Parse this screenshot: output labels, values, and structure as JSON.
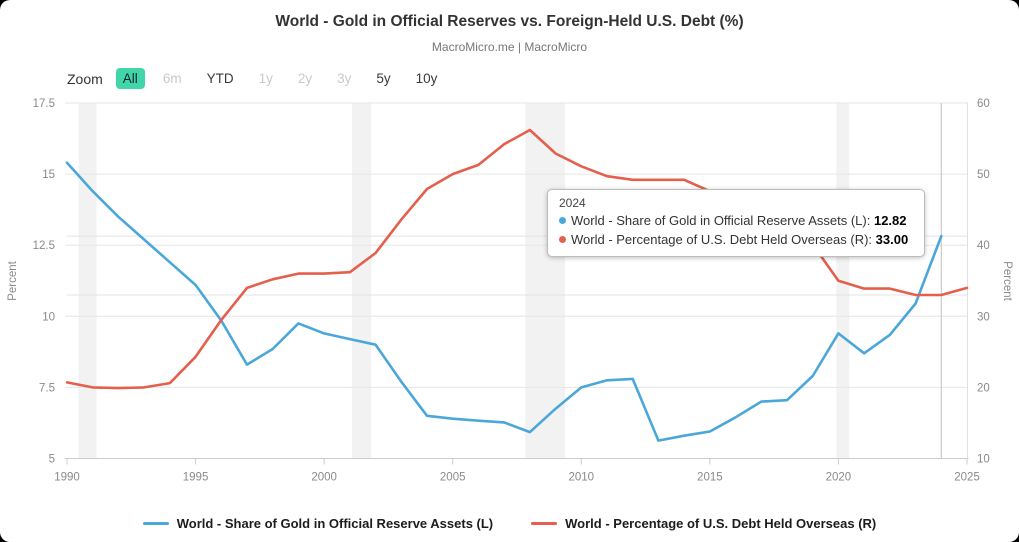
{
  "header": {
    "title": "World - Gold in Official Reserves vs. Foreign-Held U.S. Debt (%)",
    "subtitle": "MacroMicro.me | MacroMicro"
  },
  "toolbar": {
    "zoom_label": "Zoom",
    "buttons": [
      {
        "label": "All",
        "state": "active"
      },
      {
        "label": "6m",
        "state": "disabled"
      },
      {
        "label": "YTD",
        "state": "normal"
      },
      {
        "label": "1y",
        "state": "disabled"
      },
      {
        "label": "2y",
        "state": "disabled"
      },
      {
        "label": "3y",
        "state": "disabled"
      },
      {
        "label": "5y",
        "state": "normal"
      },
      {
        "label": "10y",
        "state": "normal"
      }
    ],
    "active_button_bg": "#41D6A9"
  },
  "tooltip": {
    "year": "2024",
    "rows": [
      {
        "name": "World - Share of Gold in Official Reserve Assets (L)",
        "value": "12.82",
        "color": "#4BA7D9"
      },
      {
        "name": "World - Percentage of U.S. Debt Held Overseas (R)",
        "value": "33.00",
        "color": "#E4604C"
      }
    ]
  },
  "legend": [
    {
      "label": "World - Share of Gold in Official Reserve Assets (L)",
      "color": "#4BA7D9"
    },
    {
      "label": "World - Percentage of U.S. Debt Held Overseas (R)",
      "color": "#E4604C"
    }
  ],
  "chart_data": {
    "type": "line",
    "title": "World - Gold in Official Reserves vs. Foreign-Held U.S. Debt (%)",
    "x_axis": {
      "min": 1990,
      "max": 2025,
      "ticks": [
        1990,
        1995,
        2000,
        2005,
        2010,
        2015,
        2020,
        2025
      ]
    },
    "left_axis": {
      "label": "Percent",
      "min": 5,
      "max": 17.5,
      "ticks": [
        5,
        7.5,
        10,
        12.5,
        15,
        17.5
      ]
    },
    "right_axis": {
      "label": "Percent",
      "min": 10,
      "max": 60,
      "ticks": [
        10,
        20,
        30,
        40,
        50,
        60
      ]
    },
    "grid": true,
    "legend_position": "bottom",
    "series": [
      {
        "name": "World - Share of Gold in Official Reserve Assets (L)",
        "axis": "left",
        "color": "#4BA7D9",
        "years": [
          1990,
          1991,
          1992,
          1993,
          1994,
          1995,
          1996,
          1997,
          1998,
          1999,
          2000,
          2001,
          2002,
          2003,
          2004,
          2005,
          2006,
          2007,
          2008,
          2009,
          2010,
          2011,
          2012,
          2013,
          2014,
          2015,
          2016,
          2017,
          2018,
          2019,
          2020,
          2021,
          2022,
          2023,
          2024
        ],
        "values": [
          15.4,
          14.4,
          13.5,
          12.7,
          11.9,
          11.1,
          9.85,
          8.3,
          8.85,
          9.75,
          9.4,
          9.2,
          9.0,
          7.7,
          6.5,
          6.4,
          6.33,
          6.27,
          5.93,
          6.75,
          7.5,
          7.75,
          7.8,
          5.63,
          5.8,
          5.95,
          6.45,
          7.0,
          7.05,
          7.9,
          9.4,
          8.7,
          9.35,
          10.45,
          12.82
        ]
      },
      {
        "name": "World - Percentage of U.S. Debt Held Overseas (R)",
        "axis": "right",
        "color": "#E4604C",
        "years": [
          1990,
          1991,
          1992,
          1993,
          1994,
          1995,
          1996,
          1997,
          1998,
          1999,
          2000,
          2001,
          2002,
          2003,
          2004,
          2005,
          2006,
          2007,
          2008,
          2009,
          2010,
          2011,
          2012,
          2013,
          2014,
          2015,
          2016,
          2017,
          2018,
          2019,
          2020,
          2021,
          2022,
          2023,
          2024,
          2025
        ],
        "values": [
          20.7,
          20.0,
          19.9,
          20.0,
          20.6,
          24.3,
          29.5,
          34.0,
          35.2,
          36.0,
          36.0,
          36.2,
          38.9,
          43.6,
          47.9,
          50.0,
          51.3,
          54.2,
          56.2,
          52.9,
          51.1,
          49.7,
          49.2,
          49.2,
          49.2,
          47.6,
          45.8,
          43.9,
          42.0,
          40.1,
          35.0,
          33.9,
          33.9,
          33.0,
          33.0,
          34.0
        ]
      }
    ],
    "recession_bands_years": [
      [
        1990.45,
        1991.15
      ],
      [
        2001.08,
        2001.83
      ],
      [
        2007.82,
        2009.37
      ],
      [
        2019.92,
        2020.42
      ]
    ],
    "crosshair": {
      "year": 2024,
      "left_value": 12.82,
      "right_value": 33.0
    },
    "band_color": "#f2f2f2",
    "grid_color": "#e6e6e6",
    "axis_line_color": "#cccccc",
    "tick_label_color": "#8a8a8a"
  }
}
